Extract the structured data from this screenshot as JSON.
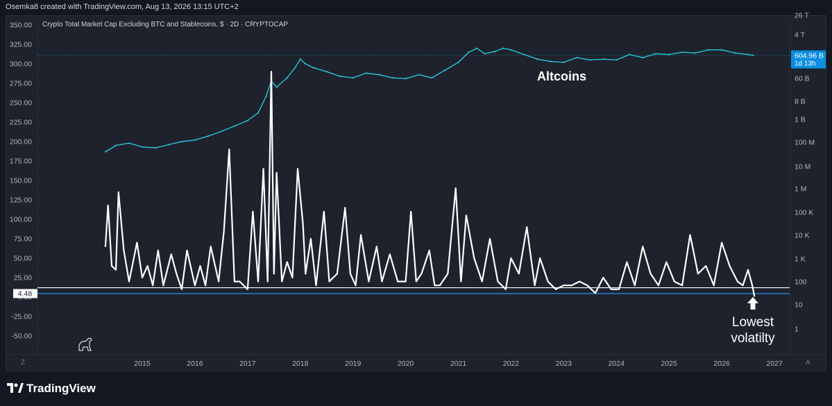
{
  "credit": "Osemka8 created with TradingView.com, Aug 13, 2026 13:15 UTC+2",
  "chart_title": "Crypto Total Market Cap Excluding BTC and Stablecoins, $ · 2D · CRYPTOCAP",
  "brand": "TradingView",
  "colors": {
    "background": "#1e222d",
    "price_line": "#26c6da",
    "volatility_line": "#ffffff",
    "level_line": "#2196f3",
    "price_badge": "#0b8ee0"
  },
  "annotations": {
    "altcoins": "Altcoins",
    "lowest_line1": "Lowest",
    "lowest_line2": "volatilty"
  },
  "corner_left": "Z",
  "corner_right": "A",
  "chart_data": {
    "type": "line",
    "left_axis": {
      "ticks": [
        "350.00",
        "325.00",
        "300.00",
        "275.00",
        "250.00",
        "225.00",
        "200.00",
        "175.00",
        "150.00",
        "125.00",
        "100.00",
        "75.00",
        "50.00",
        "25.00",
        "0.00",
        "-25.00",
        "-50.00"
      ],
      "values": [
        350,
        325,
        300,
        275,
        250,
        225,
        200,
        175,
        150,
        125,
        100,
        75,
        50,
        25,
        0,
        -25,
        -50
      ],
      "ylim": [
        -60,
        360
      ]
    },
    "right_axis": {
      "scale": "log",
      "ticks": [
        "26 T",
        "4 T",
        "604.96 B",
        "1d 13h",
        "60 B",
        "8 B",
        "1 B",
        "100 M",
        "10 M",
        "1 M",
        "100 K",
        "10 K",
        "1 K",
        "100",
        "10",
        "1"
      ]
    },
    "x_axis": {
      "ticks": [
        "2015",
        "2016",
        "2017",
        "2018",
        "2019",
        "2020",
        "2021",
        "2022",
        "2023",
        "2024",
        "2025",
        "2026",
        "2027"
      ],
      "values": [
        2015,
        2016,
        2017,
        2018,
        2019,
        2020,
        2021,
        2022,
        2023,
        2024,
        2025,
        2026,
        2027
      ]
    },
    "current_price": "604.96 B",
    "countdown": "1d 13h",
    "level_value": "4.48",
    "level_line_value": 4.48,
    "upper_level_value": 12,
    "series": [
      {
        "role": "market_cap",
        "x": [
          2014.3,
          2014.5,
          2014.75,
          2015.0,
          2015.25,
          2015.5,
          2015.75,
          2016.0,
          2016.25,
          2016.5,
          2016.75,
          2017.0,
          2017.2,
          2017.35,
          2017.45,
          2017.55,
          2017.75,
          2017.9,
          2018.0,
          2018.1,
          2018.25,
          2018.5,
          2018.75,
          2019.0,
          2019.25,
          2019.5,
          2019.75,
          2020.0,
          2020.25,
          2020.5,
          2020.75,
          2021.0,
          2021.2,
          2021.35,
          2021.5,
          2021.7,
          2021.85,
          2022.0,
          2022.25,
          2022.5,
          2022.75,
          2023.0,
          2023.25,
          2023.5,
          2023.75,
          2024.0,
          2024.25,
          2024.5,
          2024.75,
          2025.0,
          2025.25,
          2025.5,
          2025.75,
          2026.0,
          2026.25,
          2026.5,
          2026.6
        ],
        "y": [
          187,
          195,
          198,
          193,
          192,
          196,
          200,
          202,
          207,
          213,
          220,
          227,
          237,
          258,
          278,
          270,
          282,
          295,
          306,
          300,
          295,
          290,
          284,
          282,
          288,
          286,
          282,
          281,
          286,
          282,
          292,
          302,
          315,
          320,
          313,
          316,
          320,
          318,
          312,
          306,
          303,
          302,
          308,
          305,
          306,
          305,
          312,
          308,
          313,
          312,
          315,
          314,
          318,
          318,
          314,
          312,
          311
        ]
      },
      {
        "role": "volatility",
        "x": [
          2014.3,
          2014.35,
          2014.42,
          2014.5,
          2014.55,
          2014.65,
          2014.75,
          2014.9,
          2015.0,
          2015.1,
          2015.2,
          2015.3,
          2015.4,
          2015.55,
          2015.65,
          2015.75,
          2015.85,
          2016.0,
          2016.1,
          2016.2,
          2016.3,
          2016.45,
          2016.55,
          2016.65,
          2016.75,
          2016.85,
          2017.0,
          2017.1,
          2017.2,
          2017.3,
          2017.38,
          2017.45,
          2017.5,
          2017.55,
          2017.65,
          2017.75,
          2017.85,
          2017.95,
          2018.05,
          2018.1,
          2018.2,
          2018.3,
          2018.45,
          2018.55,
          2018.7,
          2018.85,
          2018.95,
          2019.05,
          2019.15,
          2019.3,
          2019.45,
          2019.55,
          2019.7,
          2019.85,
          2020.0,
          2020.1,
          2020.2,
          2020.3,
          2020.45,
          2020.55,
          2020.65,
          2020.8,
          2020.95,
          2021.05,
          2021.15,
          2021.3,
          2021.45,
          2021.6,
          2021.75,
          2021.9,
          2022.0,
          2022.15,
          2022.3,
          2022.45,
          2022.55,
          2022.7,
          2022.85,
          2023.0,
          2023.15,
          2023.3,
          2023.45,
          2023.6,
          2023.75,
          2023.9,
          2024.05,
          2024.2,
          2024.35,
          2024.5,
          2024.65,
          2024.8,
          2024.95,
          2025.1,
          2025.25,
          2025.4,
          2025.55,
          2025.7,
          2025.85,
          2026.0,
          2026.15,
          2026.3,
          2026.4,
          2026.5,
          2026.58,
          2026.62
        ],
        "y": [
          65,
          118,
          40,
          35,
          135,
          60,
          20,
          70,
          25,
          40,
          15,
          60,
          15,
          55,
          30,
          10,
          60,
          15,
          40,
          15,
          65,
          20,
          85,
          190,
          20,
          20,
          10,
          110,
          20,
          165,
          20,
          290,
          30,
          160,
          20,
          45,
          25,
          165,
          95,
          30,
          75,
          15,
          110,
          20,
          30,
          115,
          30,
          15,
          80,
          20,
          65,
          20,
          55,
          20,
          20,
          110,
          20,
          30,
          60,
          15,
          15,
          30,
          140,
          20,
          105,
          50,
          20,
          75,
          20,
          10,
          50,
          30,
          90,
          15,
          50,
          20,
          10,
          15,
          15,
          20,
          15,
          5,
          25,
          10,
          10,
          45,
          15,
          65,
          30,
          15,
          45,
          20,
          15,
          80,
          30,
          40,
          15,
          70,
          40,
          20,
          15,
          35,
          15,
          1
        ]
      }
    ],
    "grid": false,
    "legend": "none"
  }
}
